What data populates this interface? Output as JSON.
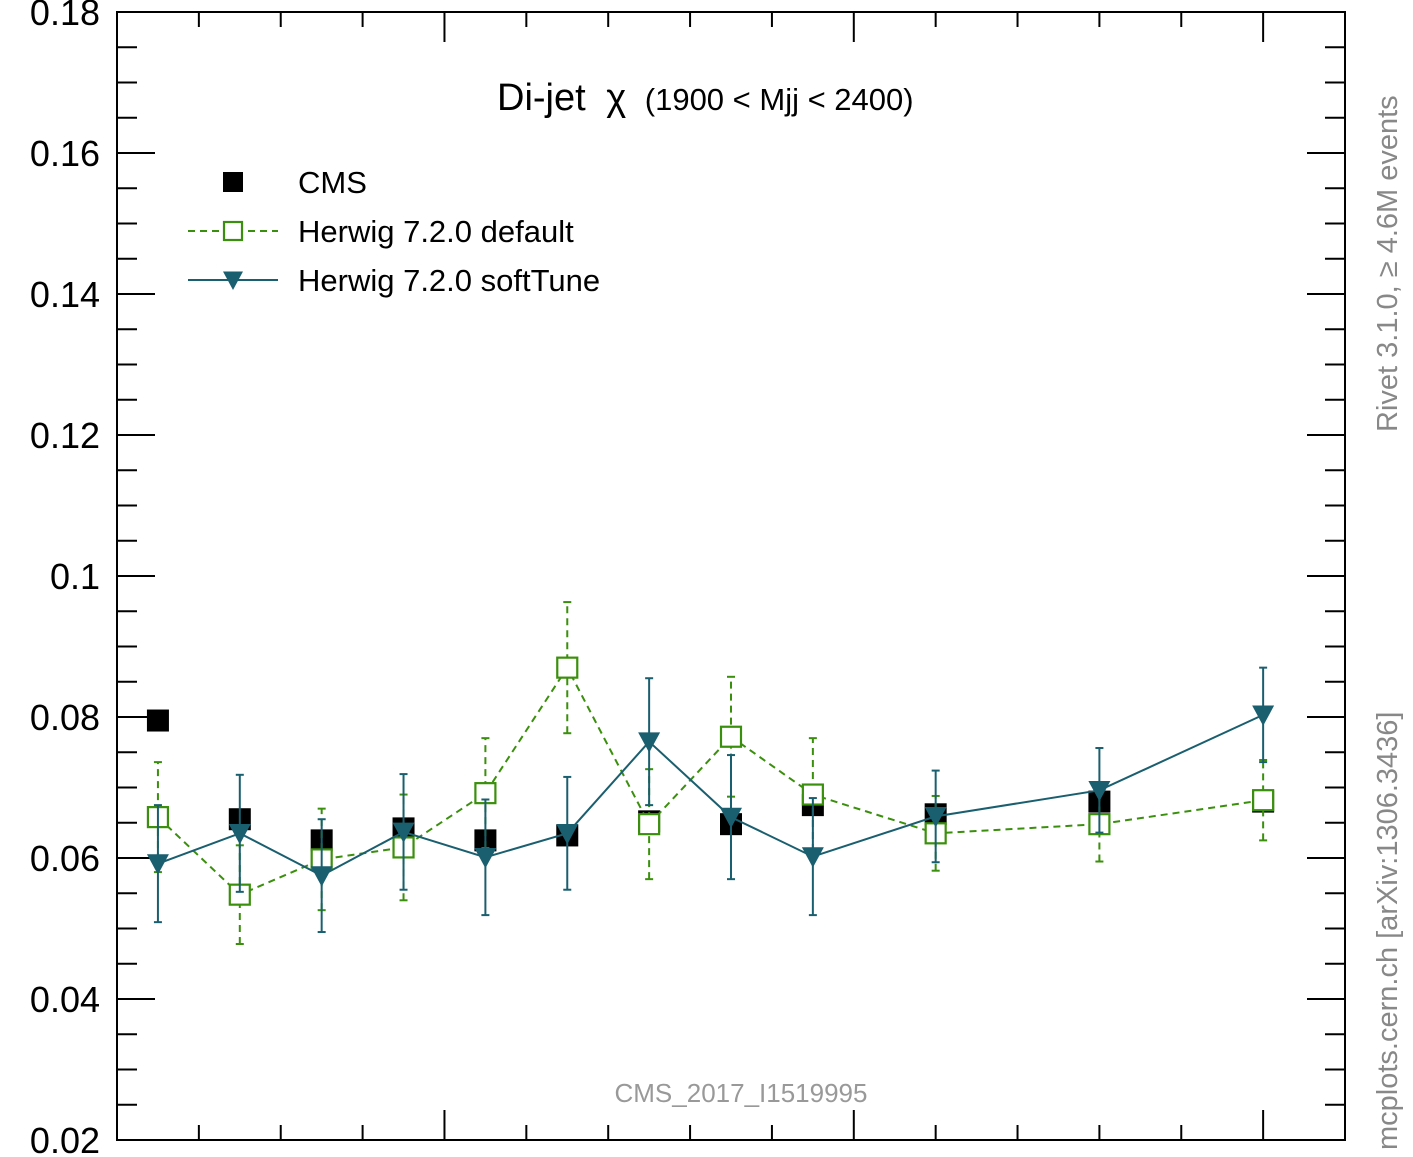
{
  "chart_data": {
    "type": "line",
    "title": "Di-jet",
    "title_symbol": "χ",
    "title_range": "(1900 < Mjj < 2400)",
    "xlabel": "",
    "ylabel": "",
    "xlim": [
      1,
      16
    ],
    "ylim": [
      0.02,
      0.18
    ],
    "y_ticks": [
      {
        "value": 0.02,
        "label": "0.02"
      },
      {
        "value": 0.04,
        "label": "0.04"
      },
      {
        "value": 0.06,
        "label": "0.06"
      },
      {
        "value": 0.08,
        "label": "0.08"
      },
      {
        "value": 0.1,
        "label": "0.1"
      },
      {
        "value": 0.12,
        "label": "0.12"
      },
      {
        "value": 0.14,
        "label": "0.14"
      },
      {
        "value": 0.16,
        "label": "0.16"
      },
      {
        "value": 0.18,
        "label": "0.18"
      }
    ],
    "x_major_ticks": [
      5,
      10,
      15
    ],
    "legend_position": "top-left",
    "grid": false,
    "series": [
      {
        "name": "CMS",
        "color": "#000000",
        "marker": "filled-square",
        "line": "none",
        "points": [
          {
            "x": 1.5,
            "y": 0.0795,
            "err": 0
          },
          {
            "x": 2.5,
            "y": 0.0655,
            "err": 0
          },
          {
            "x": 3.5,
            "y": 0.0625,
            "err": 0
          },
          {
            "x": 4.5,
            "y": 0.0642,
            "err": 0
          },
          {
            "x": 5.5,
            "y": 0.0625,
            "err": 0
          },
          {
            "x": 6.5,
            "y": 0.0632,
            "err": 0
          },
          {
            "x": 7.5,
            "y": 0.0652,
            "err": 0
          },
          {
            "x": 8.5,
            "y": 0.0648,
            "err": 0
          },
          {
            "x": 9.5,
            "y": 0.0675,
            "err": 0
          },
          {
            "x": 11.0,
            "y": 0.0662,
            "err": 0
          },
          {
            "x": 13.0,
            "y": 0.068,
            "err": 0
          },
          {
            "x": 15.0,
            "y": 0.068,
            "err": 0
          }
        ]
      },
      {
        "name": "Herwig 7.2.0 default",
        "color": "#3a8f0c",
        "marker": "open-square",
        "line": "dashed",
        "points": [
          {
            "x": 1.5,
            "y": 0.0658,
            "err": 0.0078
          },
          {
            "x": 2.5,
            "y": 0.0548,
            "err": 0.007
          },
          {
            "x": 3.5,
            "y": 0.0598,
            "err": 0.0072
          },
          {
            "x": 4.5,
            "y": 0.0615,
            "err": 0.0075
          },
          {
            "x": 5.5,
            "y": 0.0692,
            "err": 0.0078
          },
          {
            "x": 6.5,
            "y": 0.087,
            "err": 0.0093
          },
          {
            "x": 7.5,
            "y": 0.0648,
            "err": 0.0078
          },
          {
            "x": 8.5,
            "y": 0.0772,
            "err": 0.0085
          },
          {
            "x": 9.5,
            "y": 0.069,
            "err": 0.008
          },
          {
            "x": 11.0,
            "y": 0.0635,
            "err": 0.0053
          },
          {
            "x": 13.0,
            "y": 0.0648,
            "err": 0.0053
          },
          {
            "x": 15.0,
            "y": 0.0682,
            "err": 0.0057
          }
        ]
      },
      {
        "name": "Herwig 7.2.0 softTune",
        "color": "#1a5f6f",
        "marker": "filled-triangle-down",
        "line": "solid",
        "points": [
          {
            "x": 1.5,
            "y": 0.0592,
            "err": 0.0083
          },
          {
            "x": 2.5,
            "y": 0.0635,
            "err": 0.0083
          },
          {
            "x": 3.5,
            "y": 0.0575,
            "err": 0.008
          },
          {
            "x": 4.5,
            "y": 0.0637,
            "err": 0.0082
          },
          {
            "x": 5.5,
            "y": 0.0601,
            "err": 0.0082
          },
          {
            "x": 6.5,
            "y": 0.0635,
            "err": 0.008
          },
          {
            "x": 7.5,
            "y": 0.0765,
            "err": 0.009
          },
          {
            "x": 8.5,
            "y": 0.0658,
            "err": 0.0088
          },
          {
            "x": 9.5,
            "y": 0.0602,
            "err": 0.0083
          },
          {
            "x": 11.0,
            "y": 0.0659,
            "err": 0.0065
          },
          {
            "x": 13.0,
            "y": 0.0696,
            "err": 0.006
          },
          {
            "x": 15.0,
            "y": 0.0803,
            "err": 0.0067
          }
        ]
      }
    ],
    "side_label_top": "Rivet 3.1.0, ≥ 4.6M events",
    "side_label_bottom": "mcplots.cern.ch [arXiv:1306.3436]",
    "watermark": "CMS_2017_I1519995"
  }
}
